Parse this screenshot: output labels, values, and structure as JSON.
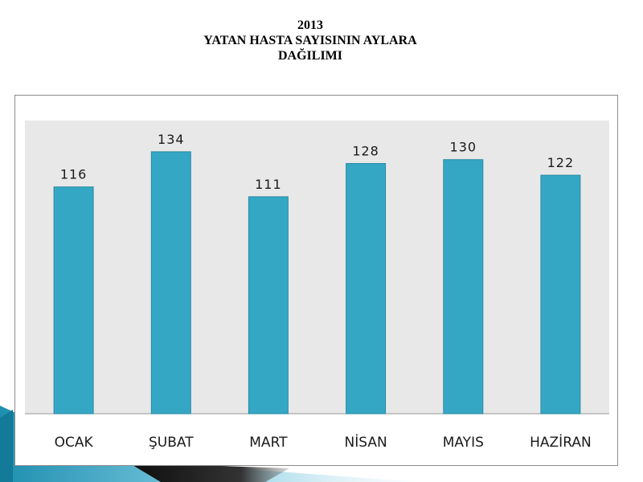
{
  "slide": {
    "title_line1": "2013",
    "title_line2": "YATAN HASTA SAYISININ AYLARA",
    "title_line3": "DAĞILIMI"
  },
  "colors": {
    "bar": "#34a7c5",
    "bar_edge": "#2b8aa3",
    "plot_background": "#e8e8e8",
    "decor_dark": "#1b1b1b",
    "decor_teal": "#1f8fb0"
  },
  "chart_data": {
    "type": "bar",
    "title": "",
    "xlabel": "",
    "ylabel": "",
    "categories": [
      "OCAK",
      "ŞUBAT",
      "MART",
      "NİSAN",
      "MAYIS",
      "HAZİRAN"
    ],
    "values": [
      116,
      134,
      111,
      128,
      130,
      122
    ],
    "ylim": [
      0,
      150
    ],
    "grid": false,
    "legend": "none",
    "data_labels": true
  }
}
